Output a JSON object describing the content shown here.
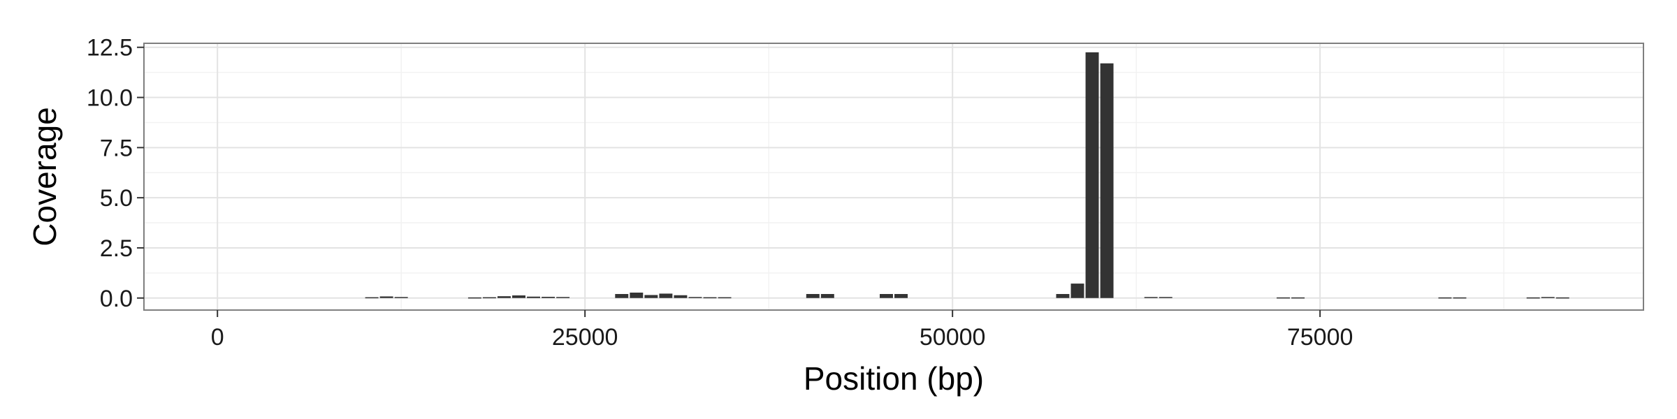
{
  "chart_data": {
    "type": "bar",
    "title": "",
    "xlabel": "Position (bp)",
    "ylabel": "Coverage",
    "xlim": [
      -5000,
      97000
    ],
    "ylim": [
      -0.6,
      12.7
    ],
    "x_ticks": [
      0,
      25000,
      50000,
      75000
    ],
    "x_tick_labels": [
      "0",
      "25000",
      "50000",
      "75000"
    ],
    "y_ticks": [
      0,
      2.5,
      5,
      7.5,
      10,
      12.5
    ],
    "y_tick_labels": [
      "0.0",
      "2.5",
      "5.0",
      "7.5",
      "10.0",
      "12.5"
    ],
    "grid": true,
    "bar_width": 900,
    "colors": {
      "bar": "#333333",
      "panel_background": "#ffffff",
      "grid_major": "#e3e3e3",
      "grid_minor": "#f2f2f2",
      "panel_border": "#7f7f7f"
    },
    "x": [
      10500,
      11500,
      12500,
      17500,
      18500,
      19500,
      20500,
      21500,
      22500,
      23500,
      27500,
      28500,
      29500,
      30500,
      31500,
      32500,
      33500,
      34500,
      40500,
      41500,
      45500,
      46500,
      57500,
      58500,
      59500,
      60500,
      63500,
      64500,
      72500,
      73500,
      83500,
      84500,
      89500,
      90500,
      91500
    ],
    "values": [
      0.04,
      0.08,
      0.05,
      0.03,
      0.04,
      0.09,
      0.13,
      0.07,
      0.06,
      0.05,
      0.2,
      0.27,
      0.15,
      0.22,
      0.14,
      0.05,
      0.04,
      0.04,
      0.2,
      0.2,
      0.2,
      0.2,
      0.2,
      0.72,
      12.25,
      11.7,
      0.05,
      0.05,
      0.03,
      0.03,
      0.03,
      0.03,
      0.03,
      0.05,
      0.03
    ]
  }
}
